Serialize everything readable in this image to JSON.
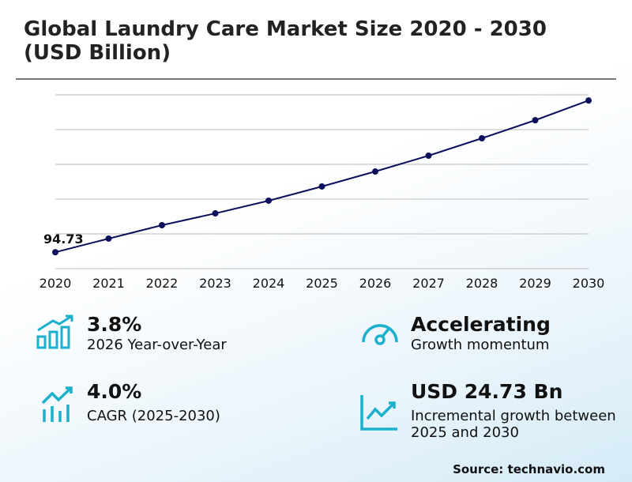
{
  "chart_data": {
    "type": "line",
    "title": "Global Laundry Care Market Size 2020 - 2030 (USD Billion)",
    "categories": [
      "2020",
      "2021",
      "2022",
      "2023",
      "2024",
      "2025",
      "2026",
      "2027",
      "2028",
      "2029",
      "2030"
    ],
    "values": [
      94.73,
      98.64,
      102.5,
      105.9,
      109.55,
      113.64,
      117.95,
      122.5,
      127.5,
      132.7,
      138.37
    ],
    "value_labels": [
      "94.73",
      null,
      null,
      null,
      null,
      null,
      null,
      null,
      null,
      null,
      null
    ],
    "color": "#0b0f5c",
    "ylim": [
      90,
      140
    ],
    "yticks": [
      90,
      100,
      110,
      120,
      130,
      140
    ],
    "grid": true
  },
  "stats": [
    {
      "value": "3.8%",
      "label": "2026 Year-over-Year"
    },
    {
      "value": "Accelerating",
      "label": "Growth momentum"
    },
    {
      "value": "4.0%",
      "label": "CAGR (2025-2030)"
    },
    {
      "value": "USD 24.73 Bn",
      "label": "Incremental growth between 2025 and 2030"
    }
  ],
  "source": "Source: technavio.com"
}
